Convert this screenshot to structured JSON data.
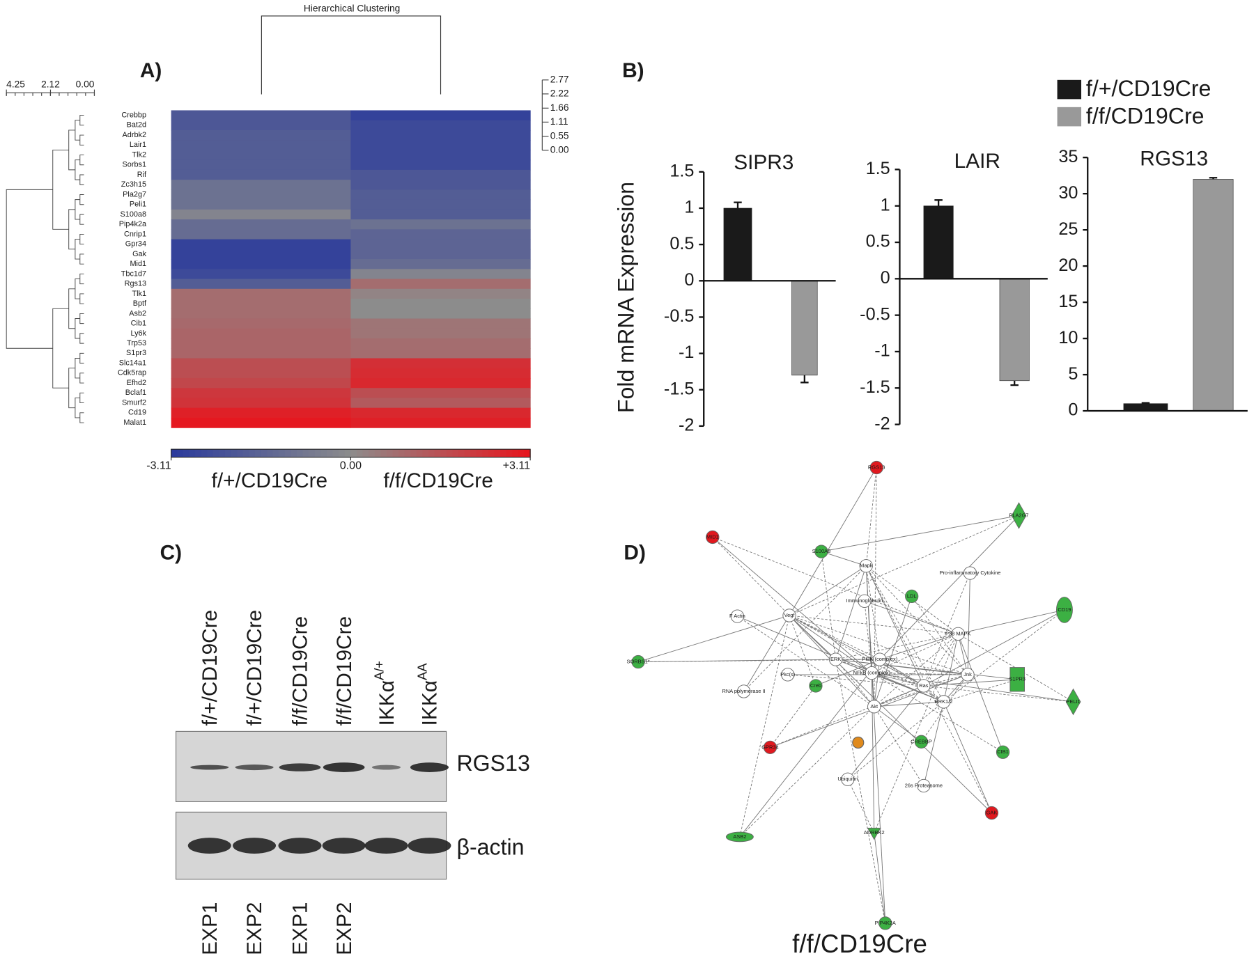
{
  "panel_labels": [
    "A)",
    "B)",
    "C)",
    "D)"
  ],
  "chart_data": [
    {
      "type": "heatmap",
      "title": "Hierarchical Clustering",
      "rows": [
        "Crebbp",
        "Bat2d",
        "Adrbk2",
        "Lair1",
        "Tlk2",
        "Sorbs1",
        "Rif",
        "Zc3h15",
        "Pla2g7",
        "Peli1",
        "S100a8",
        "Pip4k2a",
        "Cnrip1",
        "Gpr34",
        "Gak",
        "Mid1",
        "Tbc1d7",
        "Rgs13",
        "Tlk1",
        "Bptf",
        "Asb2",
        "Cib1",
        "Ly6k",
        "Trp53",
        "S1pr3",
        "Slc14a1",
        "Cdk5rap",
        "Efhd2",
        "Bclaf1",
        "Smurf2",
        "Cd19",
        "Malat1"
      ],
      "columns": [
        "f/+/CD19Cre",
        "f/f/CD19Cre"
      ],
      "values": [
        [
          -2,
          -2.8
        ],
        [
          -2,
          -2.5
        ],
        [
          -1.8,
          -2.5
        ],
        [
          -1.8,
          -2.5
        ],
        [
          -1.8,
          -2.5
        ],
        [
          -1.8,
          -2.5
        ],
        [
          -1.8,
          -2
        ],
        [
          -1,
          -2
        ],
        [
          -1,
          -1.8
        ],
        [
          -1,
          -1.8
        ],
        [
          -0.3,
          -1.8
        ],
        [
          -1.2,
          -1
        ],
        [
          -1.2,
          -1.5
        ],
        [
          -2.8,
          -1.5
        ],
        [
          -2.8,
          -1.5
        ],
        [
          -2.8,
          -1.2
        ],
        [
          -2.5,
          -0.3
        ],
        [
          -1.8,
          0.8
        ],
        [
          0.8,
          0.2
        ],
        [
          0.8,
          0
        ],
        [
          0.8,
          0
        ],
        [
          0.9,
          0.6
        ],
        [
          1,
          0.6
        ],
        [
          1,
          0.8
        ],
        [
          1,
          0.8
        ],
        [
          1.6,
          2.4
        ],
        [
          1.6,
          2.5
        ],
        [
          1.8,
          2.6
        ],
        [
          2.2,
          1.6
        ],
        [
          2.3,
          1.3
        ],
        [
          2.8,
          2.6
        ],
        [
          3,
          2.8
        ]
      ],
      "zlim": [
        -3.11,
        3.11
      ],
      "colorbar_ticks": [
        {
          "value": -3.11,
          "label": "-3.11"
        },
        {
          "value": 0,
          "label": "0.00"
        },
        {
          "value": 3.11,
          "label": "+3.11"
        }
      ],
      "colors": [
        "#2a3a9c",
        "#8c8c8c",
        "#e8141c"
      ],
      "row_dendrogram_lim": [
        0,
        4.25
      ],
      "row_dendrogram_ticks": [
        4.25,
        2.12,
        {
          "value": 0,
          "label": "0.00"
        }
      ],
      "column_dendrogram_lim": [
        0,
        2.77
      ],
      "column_dendrogram_ticks": [
        2.77,
        2.22,
        1.66,
        1.11,
        0.55,
        {
          "value": 0,
          "label": "0.00"
        }
      ]
    },
    {
      "type": "bar",
      "title": "SIPR3",
      "ylabel": "Fold mRNA Expression",
      "categories": [
        null,
        null
      ],
      "series": [
        {
          "color": "#1a1a1a",
          "values": [
            1,
            null
          ],
          "errors": [
            0.08,
            null
          ]
        },
        {
          "color": "#999999",
          "values": [
            null,
            -1.3
          ],
          "errors": [
            null,
            0.1
          ]
        }
      ],
      "ylim": [
        -2,
        1.5
      ],
      "yticks": [
        -2,
        -1.5,
        -1,
        -0.5,
        0,
        0.5,
        1,
        1.5
      ]
    },
    {
      "type": "bar",
      "title": "LAIR",
      "categories": [
        null,
        null
      ],
      "series": [
        {
          "color": "#1a1a1a",
          "values": [
            1,
            null
          ],
          "errors": [
            0.08,
            null
          ]
        },
        {
          "color": "#999999",
          "values": [
            null,
            -1.4
          ],
          "errors": [
            null,
            0.06
          ]
        }
      ],
      "ylim": [
        -2,
        1.5
      ],
      "yticks": [
        -2,
        -1.5,
        -1,
        -0.5,
        0,
        0.5,
        1,
        1.5
      ]
    },
    {
      "type": "bar",
      "title": "RGS13",
      "categories": [
        null,
        null
      ],
      "legend": "top-right",
      "series": [
        {
          "name": "f/+/CD19Cre",
          "color": "#1a1a1a",
          "values": [
            1,
            null
          ],
          "errors": [
            0.1,
            null
          ]
        },
        {
          "name": "f/f/CD19Cre",
          "color": "#999999",
          "values": [
            null,
            32
          ],
          "errors": [
            null,
            0.2
          ]
        }
      ],
      "ylim": [
        0,
        35
      ],
      "yticks": [
        0,
        5,
        10,
        15,
        20,
        25,
        30,
        35
      ]
    }
  ],
  "blot": {
    "lanes": [
      "f/+/CD19Cre",
      "f/+/CD19Cre",
      "f/f/CD19Cre",
      "f/f/CD19Cre",
      {
        "text": "IKKα",
        "sup": "A/+"
      },
      {
        "text": "IKKα",
        "sup": "AA"
      }
    ],
    "bands": [
      "RGS13",
      "β-actin"
    ],
    "experiments": [
      "EXP1",
      "EXP2",
      "EXP1",
      "EXP2"
    ]
  },
  "network": {
    "title": "f/f/CD19Cre",
    "nodes": [
      {
        "label": "RGS13",
        "color": "#e0191f"
      },
      {
        "label": "PLA2G7",
        "color": "#3cb043"
      },
      {
        "label": "MID1",
        "color": "#e0191f"
      },
      {
        "label": "S100A8",
        "color": "#3cb043"
      },
      {
        "label": "Mapk",
        "color": "#ffffff"
      },
      {
        "label": "Pro-inflammatory Cytokine",
        "color": "#ffffff"
      },
      {
        "label": "LDL",
        "color": "#3cb043"
      },
      {
        "label": "Immunoglobulin",
        "color": "#ffffff"
      },
      {
        "label": "CD19",
        "color": "#3cb043"
      },
      {
        "label": "F Actin",
        "color": "#ffffff"
      },
      {
        "label": "Vegf",
        "color": "#ffffff"
      },
      {
        "label": "P38 MAPK",
        "color": "#ffffff"
      },
      {
        "label": "ERK",
        "color": "#ffffff"
      },
      {
        "label": "PI3K (complex)",
        "color": "#ffffff"
      },
      {
        "label": "SORBS1*",
        "color": "#3cb043"
      },
      {
        "label": "Pkc(s)",
        "color": "#ffffff"
      },
      {
        "label": "Ras",
        "color": "#ffffff"
      },
      {
        "label": "Jnk",
        "color": "#ffffff"
      },
      {
        "label": "S1PR3",
        "color": "#3cb043"
      },
      {
        "label": "NFkB (complex)",
        "color": "#ffffff"
      },
      {
        "label": "RNA polymerase II",
        "color": "#ffffff"
      },
      {
        "label": "Creb",
        "color": "#3cb043"
      },
      {
        "label": "PELI1",
        "color": "#3cb043"
      },
      {
        "label": "ERK1/2",
        "color": "#ffffff"
      },
      {
        "label": "Akt",
        "color": "#ffffff"
      },
      {
        "label": "GPR34",
        "color": "#e0191f"
      },
      {
        "label": "CREBBP",
        "color": "#3cb043"
      },
      {
        "label": "CIB1",
        "color": "#3cb043"
      },
      {
        "label": "Ubiquitin",
        "color": "#ffffff"
      },
      {
        "label": "26s Proteasome",
        "color": "#ffffff"
      },
      {
        "label": "GAK",
        "color": "#e0191f"
      },
      {
        "label": "ASB2",
        "color": "#3cb043"
      },
      {
        "label": "ADRBK2",
        "color": "#3cb043"
      },
      {
        "label": "PIP4K2A",
        "color": "#3cb043"
      }
    ]
  }
}
